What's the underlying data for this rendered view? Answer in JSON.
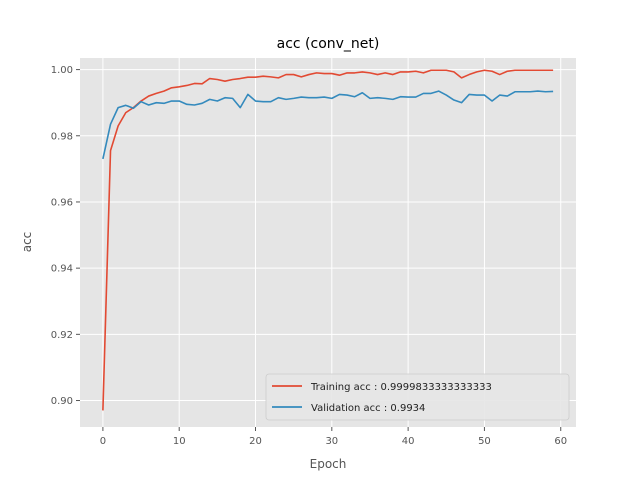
{
  "chart_data": {
    "type": "line",
    "title": "acc (conv_net)",
    "xlabel": "Epoch",
    "ylabel": "acc",
    "xlim": [
      -3,
      62
    ],
    "ylim": [
      0.892,
      1.0035
    ],
    "xticks": [
      0,
      10,
      20,
      30,
      40,
      50,
      60
    ],
    "xtick_labels": [
      "0",
      "10",
      "20",
      "30",
      "40",
      "50",
      "60"
    ],
    "yticks": [
      0.9,
      0.92,
      0.94,
      0.96,
      0.98,
      1.0
    ],
    "ytick_labels": [
      "0.90",
      "0.92",
      "0.94",
      "0.96",
      "0.98",
      "1.00"
    ],
    "grid": true,
    "legend_position": "bottom-right",
    "x": [
      0,
      1,
      2,
      3,
      4,
      5,
      6,
      7,
      8,
      9,
      10,
      11,
      12,
      13,
      14,
      15,
      16,
      17,
      18,
      19,
      20,
      21,
      22,
      23,
      24,
      25,
      26,
      27,
      28,
      29,
      30,
      31,
      32,
      33,
      34,
      35,
      36,
      37,
      38,
      39,
      40,
      41,
      42,
      43,
      44,
      45,
      46,
      47,
      48,
      49,
      50,
      51,
      52,
      53,
      54,
      55,
      56,
      57,
      58,
      59
    ],
    "series": [
      {
        "name": "Training acc : 0.9999833333333333",
        "color": "#e24a33",
        "values": [
          0.897,
          0.9755,
          0.983,
          0.987,
          0.9885,
          0.9905,
          0.992,
          0.9928,
          0.9935,
          0.9945,
          0.9948,
          0.9952,
          0.9958,
          0.9957,
          0.9973,
          0.997,
          0.9965,
          0.997,
          0.9973,
          0.9977,
          0.9977,
          0.998,
          0.9978,
          0.9975,
          0.9985,
          0.9985,
          0.9978,
          0.9985,
          0.999,
          0.9988,
          0.9988,
          0.9983,
          0.999,
          0.999,
          0.9993,
          0.999,
          0.9985,
          0.999,
          0.9985,
          0.9993,
          0.9993,
          0.9995,
          0.999,
          0.9998,
          0.9998,
          0.9998,
          0.9993,
          0.9975,
          0.9985,
          0.9993,
          0.9998,
          0.9995,
          0.9985,
          0.9995,
          0.9998,
          0.9998,
          0.9998,
          0.9998,
          0.9998,
          0.9998
        ]
      },
      {
        "name": "Validation acc : 0.9934",
        "color": "#348abd",
        "values": [
          0.973,
          0.9835,
          0.9885,
          0.9892,
          0.9883,
          0.9903,
          0.9893,
          0.99,
          0.9898,
          0.9905,
          0.9905,
          0.9895,
          0.9893,
          0.9898,
          0.991,
          0.9905,
          0.9915,
          0.9913,
          0.9885,
          0.9925,
          0.9905,
          0.9903,
          0.9903,
          0.9915,
          0.991,
          0.9913,
          0.9917,
          0.9915,
          0.9915,
          0.9917,
          0.9913,
          0.9925,
          0.9923,
          0.9918,
          0.993,
          0.9913,
          0.9915,
          0.9913,
          0.991,
          0.9918,
          0.9917,
          0.9917,
          0.9928,
          0.9928,
          0.9935,
          0.9923,
          0.9908,
          0.99,
          0.9925,
          0.9923,
          0.9923,
          0.9905,
          0.9923,
          0.992,
          0.9933,
          0.9933,
          0.9933,
          0.9935,
          0.9933,
          0.9934
        ]
      }
    ]
  }
}
